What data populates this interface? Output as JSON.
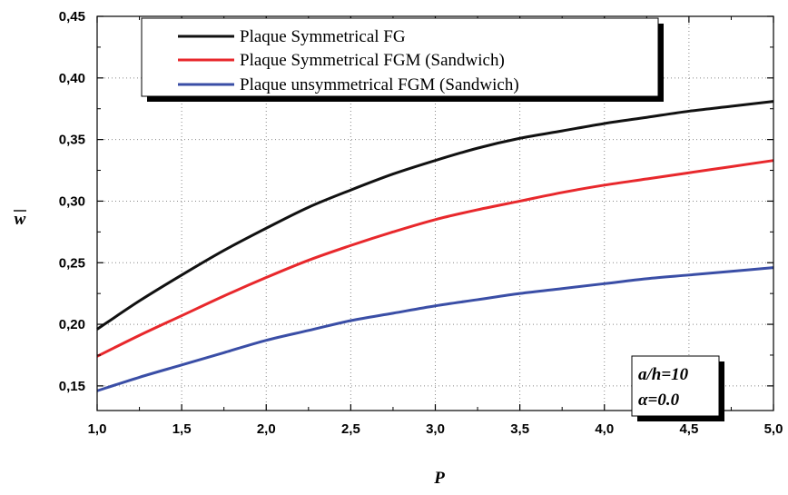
{
  "chart_data": {
    "type": "line",
    "xlabel": "P",
    "ylabel": "w",
    "xlim": [
      1.0,
      5.0
    ],
    "ylim": [
      0.13,
      0.45
    ],
    "grid": true,
    "legend_position": "top-left",
    "x_ticks": [
      "1,0",
      "1,5",
      "2,0",
      "2,5",
      "3,0",
      "3,5",
      "4,0",
      "4,5",
      "5,0"
    ],
    "y_ticks": [
      "0,15",
      "0,20",
      "0,25",
      "0,30",
      "0,35",
      "0,40",
      "0,45"
    ],
    "x": [
      1.0,
      1.25,
      1.5,
      1.75,
      2.0,
      2.25,
      2.5,
      2.75,
      3.0,
      3.25,
      3.5,
      3.75,
      4.0,
      4.25,
      4.5,
      4.75,
      5.0
    ],
    "series": [
      {
        "name": "Plaque Symmetrical FG",
        "color": "#111111",
        "values": [
          0.196,
          0.219,
          0.24,
          0.26,
          0.278,
          0.295,
          0.309,
          0.322,
          0.333,
          0.343,
          0.351,
          0.357,
          0.363,
          0.368,
          0.373,
          0.377,
          0.381
        ]
      },
      {
        "name": "Plaque Symmetrical FGM (Sandwich)",
        "color": "#e8282c",
        "values": [
          0.174,
          0.191,
          0.207,
          0.223,
          0.238,
          0.252,
          0.264,
          0.275,
          0.285,
          0.293,
          0.3,
          0.307,
          0.313,
          0.318,
          0.323,
          0.328,
          0.333
        ]
      },
      {
        "name": "Plaque unsymmetrical FGM (Sandwich)",
        "color": "#3a4ea6",
        "values": [
          0.146,
          0.157,
          0.167,
          0.177,
          0.187,
          0.195,
          0.203,
          0.209,
          0.215,
          0.22,
          0.225,
          0.229,
          0.233,
          0.237,
          0.24,
          0.243,
          0.246
        ]
      }
    ],
    "annotation": [
      "a/h=10",
      "α=0.0"
    ]
  }
}
